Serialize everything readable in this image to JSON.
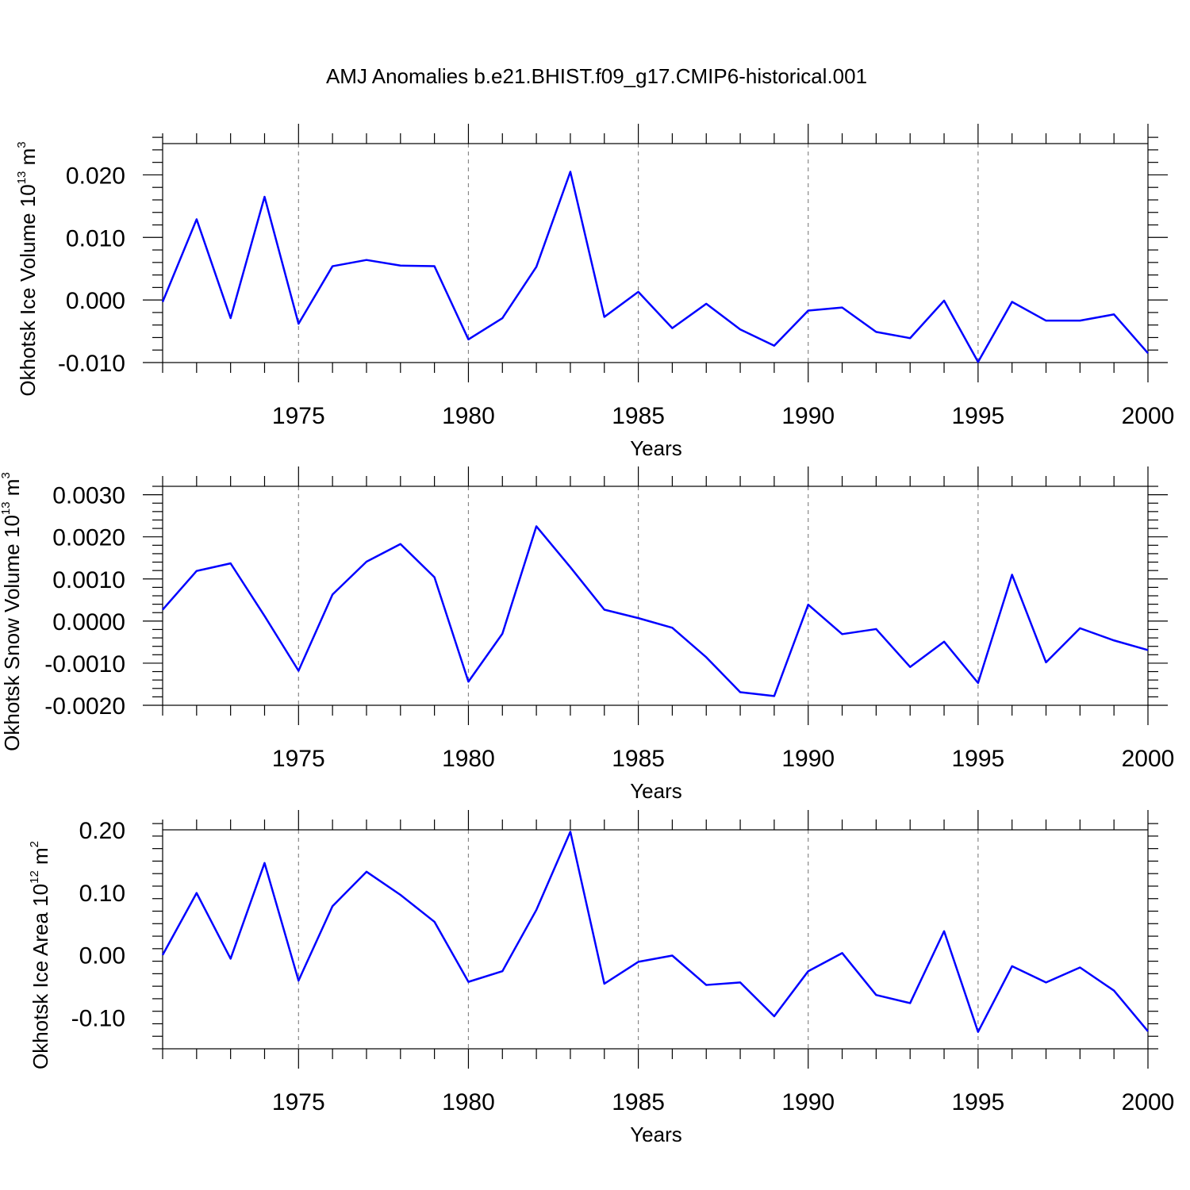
{
  "title": "AMJ Anomalies b.e21.BHIST.f09_g17.CMIP6-historical.001",
  "colors": {
    "line": "#0000ff",
    "axis": "#000000",
    "grid": "#888888"
  },
  "chart_data": [
    {
      "type": "line",
      "ylabel": "Okhotsk Ice Volume 10",
      "ylabel_sup1": "13",
      "ylabel_unit": " m",
      "ylabel_sup2": "3",
      "xlabel": "Years",
      "xlim": [
        1971,
        2000
      ],
      "ylim": [
        -0.01,
        0.025
      ],
      "yticks": [
        -0.01,
        0.0,
        0.01,
        0.02
      ],
      "ytick_labels": [
        "-0.010",
        "0.000",
        "0.010",
        "0.020"
      ],
      "yminor_step": 0.002,
      "xticks": [
        1975,
        1980,
        1985,
        1990,
        1995,
        2000
      ],
      "xtick_labels": [
        "1975",
        "1980",
        "1985",
        "1990",
        "1995",
        "2000"
      ],
      "x": [
        1971,
        1972,
        1973,
        1974,
        1975,
        1976,
        1977,
        1978,
        1979,
        1980,
        1981,
        1982,
        1983,
        1984,
        1985,
        1986,
        1987,
        1988,
        1989,
        1990,
        1991,
        1992,
        1993,
        1994,
        1995,
        1996,
        1997,
        1998,
        1999,
        2000
      ],
      "series": [
        {
          "name": "Okhotsk Ice Volume",
          "values": [
            -0.0003,
            0.0129,
            -0.0029,
            0.0165,
            -0.0038,
            0.0054,
            0.0064,
            0.0055,
            0.0054,
            -0.0063,
            -0.0029,
            0.0053,
            0.0205,
            -0.0027,
            0.0013,
            -0.0045,
            -0.0006,
            -0.0047,
            -0.0073,
            -0.0017,
            -0.0012,
            -0.0051,
            -0.0061,
            -0.0001,
            -0.0099,
            -0.0003,
            -0.0033,
            -0.0033,
            -0.0023,
            -0.0085
          ]
        }
      ]
    },
    {
      "type": "line",
      "ylabel": "Okhotsk Snow Volume 10",
      "ylabel_sup1": "13",
      "ylabel_unit": " m",
      "ylabel_sup2": "3",
      "xlabel": "Years",
      "xlim": [
        1971,
        2000
      ],
      "ylim": [
        -0.002,
        0.0032
      ],
      "yticks": [
        -0.002,
        -0.001,
        0.0,
        0.001,
        0.002,
        0.003
      ],
      "ytick_labels": [
        "-0.0020",
        "-0.0010",
        "0.0000",
        "0.0010",
        "0.0020",
        "0.0030"
      ],
      "yminor_step": 0.0002,
      "xticks": [
        1975,
        1980,
        1985,
        1990,
        1995,
        2000
      ],
      "xtick_labels": [
        "1975",
        "1980",
        "1985",
        "1990",
        "1995",
        "2000"
      ],
      "x": [
        1971,
        1972,
        1973,
        1974,
        1975,
        1976,
        1977,
        1978,
        1979,
        1980,
        1981,
        1982,
        1983,
        1984,
        1985,
        1986,
        1987,
        1988,
        1989,
        1990,
        1991,
        1992,
        1993,
        1994,
        1995,
        1996,
        1997,
        1998,
        1999,
        2000
      ],
      "series": [
        {
          "name": "Okhotsk Snow Volume",
          "values": [
            0.00027,
            0.00119,
            0.00137,
            0.00012,
            -0.00118,
            0.00063,
            0.00141,
            0.00183,
            0.00104,
            -0.00144,
            -0.0003,
            0.00225,
            0.00128,
            0.00027,
            7e-05,
            -0.00016,
            -0.00086,
            -0.00169,
            -0.00178,
            0.00039,
            -0.00031,
            -0.00019,
            -0.00109,
            -0.00049,
            -0.00147,
            0.0011,
            -0.00098,
            -0.00017,
            -0.00046,
            -0.00069
          ]
        }
      ]
    },
    {
      "type": "line",
      "ylabel": "Okhotsk Ice Area 10",
      "ylabel_sup1": "12",
      "ylabel_unit": " m",
      "ylabel_sup2": "2",
      "xlabel": "Years",
      "xlim": [
        1971,
        2000
      ],
      "ylim": [
        -0.15,
        0.2
      ],
      "yticks": [
        -0.1,
        0.0,
        0.1,
        0.2
      ],
      "ytick_labels": [
        "-0.10",
        "0.00",
        "0.10",
        "0.20"
      ],
      "yminor_step": 0.02,
      "xticks": [
        1975,
        1980,
        1985,
        1990,
        1995,
        2000
      ],
      "xtick_labels": [
        "1975",
        "1980",
        "1985",
        "1990",
        "1995",
        "2000"
      ],
      "x": [
        1971,
        1972,
        1973,
        1974,
        1975,
        1976,
        1977,
        1978,
        1979,
        1980,
        1981,
        1982,
        1983,
        1984,
        1985,
        1986,
        1987,
        1988,
        1989,
        1990,
        1991,
        1992,
        1993,
        1994,
        1995,
        1996,
        1997,
        1998,
        1999,
        2000
      ],
      "series": [
        {
          "name": "Okhotsk Ice Area",
          "values": [
            0.0,
            0.099,
            -0.006,
            0.147,
            -0.041,
            0.078,
            0.133,
            0.096,
            0.053,
            -0.043,
            -0.026,
            0.072,
            0.197,
            -0.046,
            -0.011,
            -0.001,
            -0.048,
            -0.044,
            -0.098,
            -0.026,
            0.003,
            -0.064,
            -0.077,
            0.038,
            -0.123,
            -0.018,
            -0.044,
            -0.02,
            -0.057,
            -0.122
          ]
        }
      ]
    }
  ]
}
